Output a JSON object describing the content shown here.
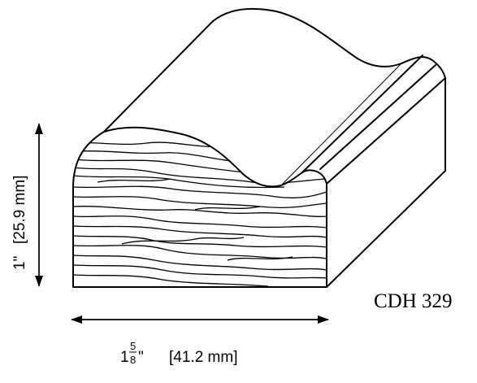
{
  "profile_code": "CDH 329",
  "height_dimension": {
    "imperial": "1\"",
    "metric": "[25.9 mm]"
  },
  "width_dimension": {
    "imperial_whole": "1",
    "imperial_numerator": "5",
    "imperial_denominator": "8",
    "imperial_unit": "\"",
    "metric": "[41.2 mm]"
  }
}
